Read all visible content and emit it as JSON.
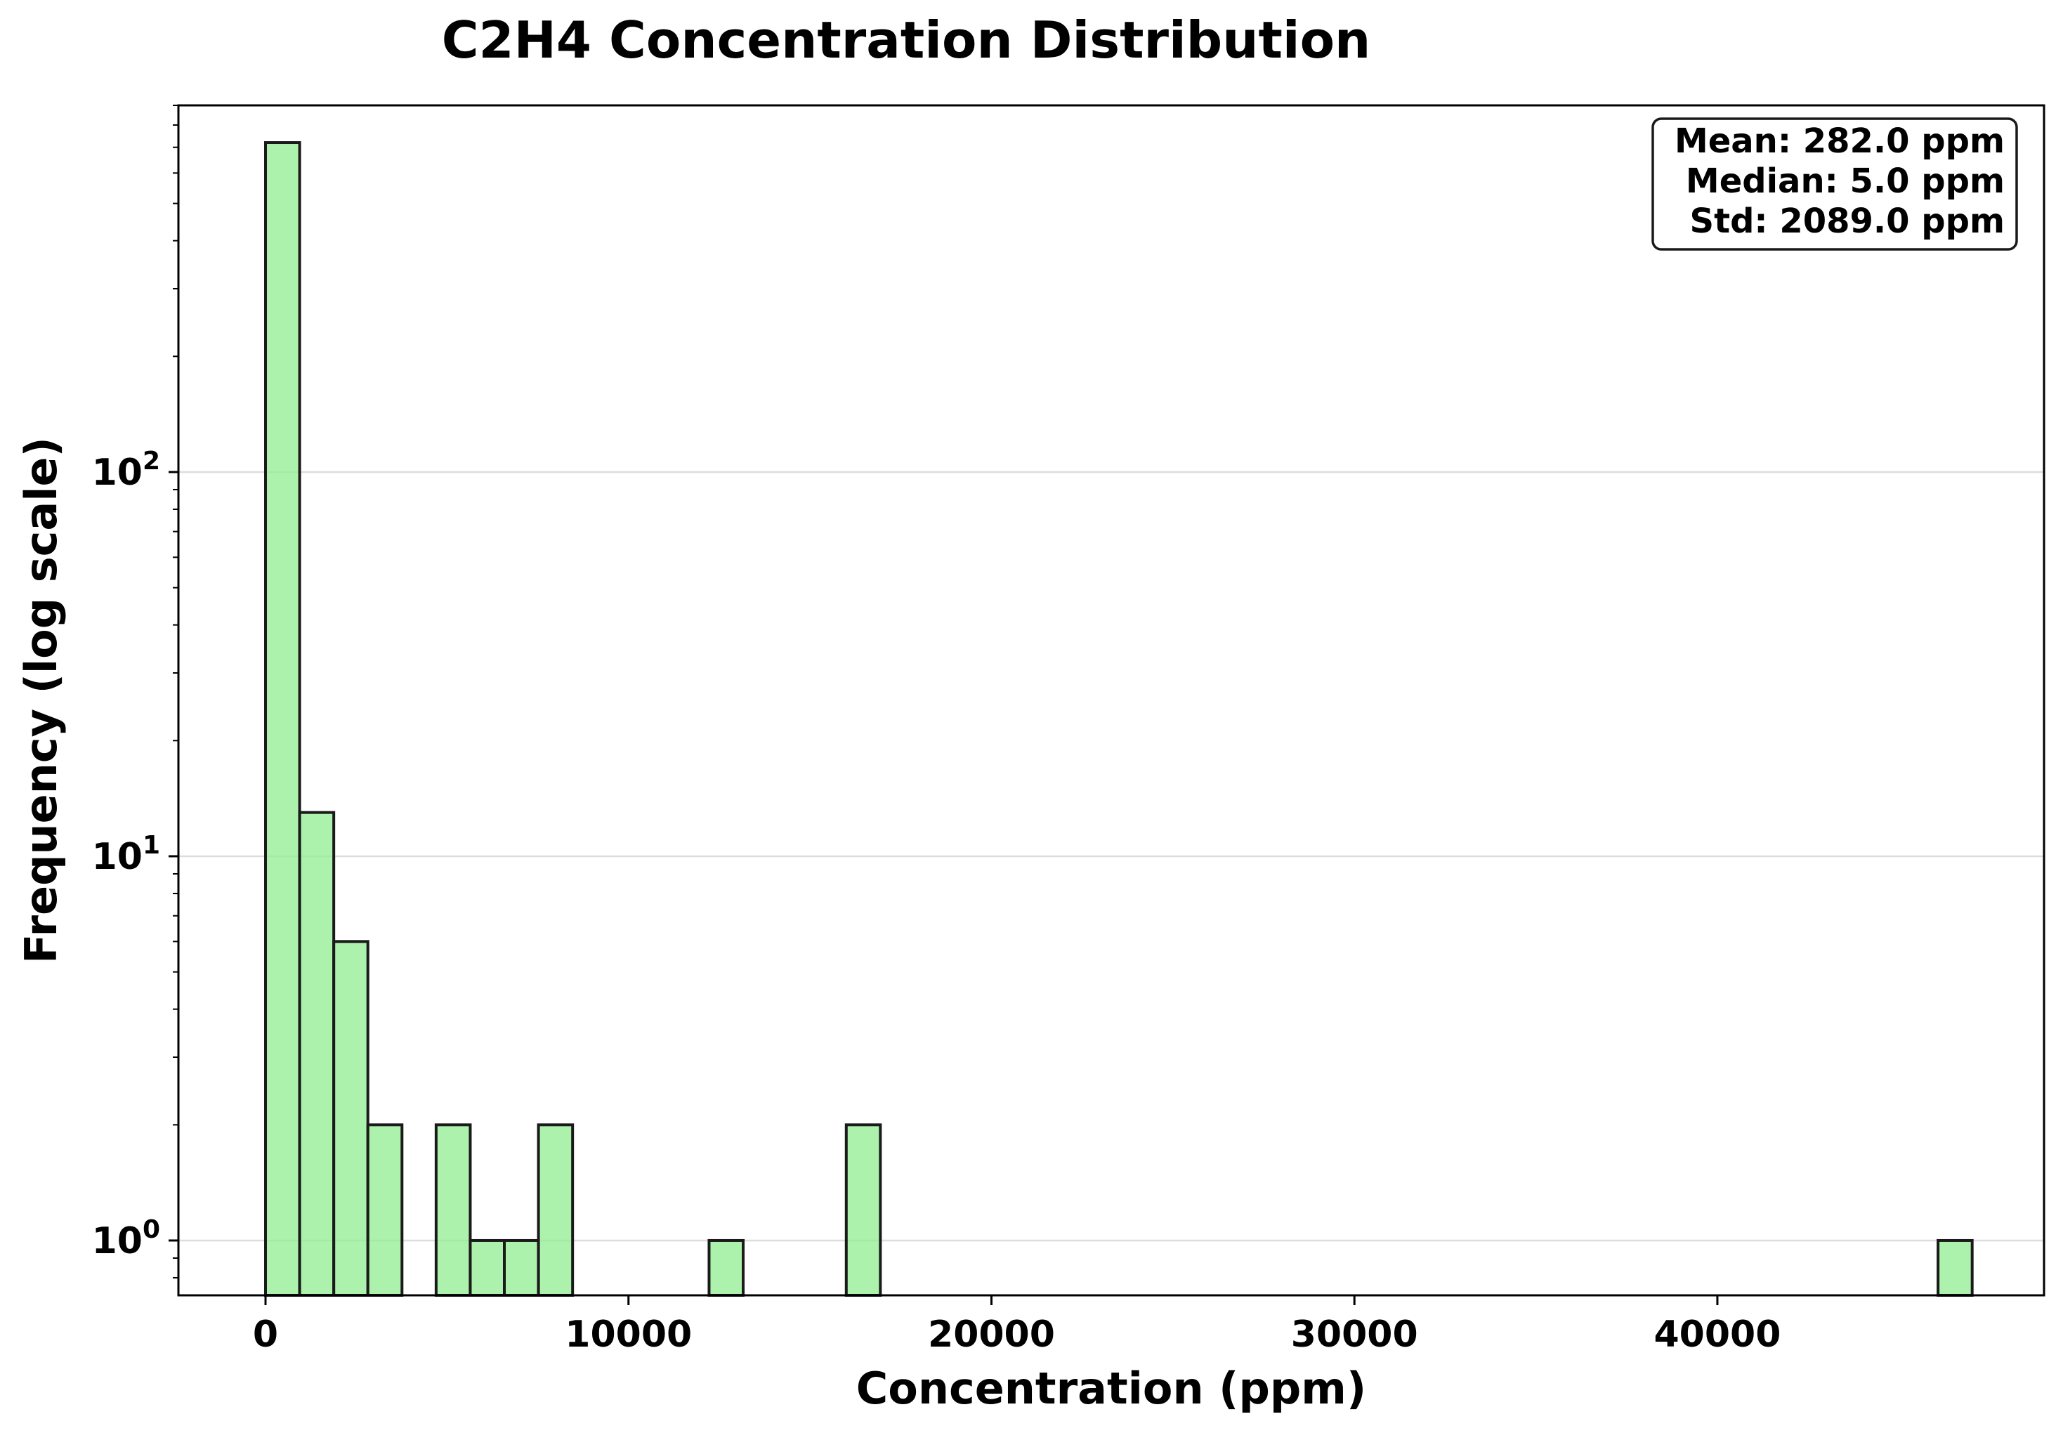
{
  "chart_data": {
    "type": "bar",
    "title": "C2H4 Concentration Distribution",
    "xlabel": "Concentration (ppm)",
    "ylabel": "Frequency (log scale)",
    "y_scale": "log",
    "xlim": [
      -2400,
      49000
    ],
    "ylim": [
      0.72,
      900
    ],
    "x_ticks": [
      0,
      10000,
      20000,
      30000,
      40000
    ],
    "x_tick_labels": [
      "0",
      "10000",
      "20000",
      "30000",
      "40000"
    ],
    "y_ticks": [
      1,
      10,
      100
    ],
    "y_tick_labels": [
      {
        "base": "10",
        "exp": "0"
      },
      {
        "base": "10",
        "exp": "1"
      },
      {
        "base": "10",
        "exp": "2"
      }
    ],
    "grid": "y-major",
    "bin_width": 940,
    "bins": [
      {
        "start": 0,
        "end": 940,
        "count": 720
      },
      {
        "start": 940,
        "end": 1880,
        "count": 13
      },
      {
        "start": 1880,
        "end": 2820,
        "count": 6
      },
      {
        "start": 2820,
        "end": 3760,
        "count": 2
      },
      {
        "start": 4700,
        "end": 5640,
        "count": 2
      },
      {
        "start": 5640,
        "end": 6580,
        "count": 1
      },
      {
        "start": 6580,
        "end": 7520,
        "count": 1
      },
      {
        "start": 7520,
        "end": 8460,
        "count": 2
      },
      {
        "start": 12220,
        "end": 13160,
        "count": 1
      },
      {
        "start": 16000,
        "end": 16940,
        "count": 2
      },
      {
        "start": 46080,
        "end": 47020,
        "count": 1
      }
    ],
    "stats_box": {
      "placement": "top-right",
      "lines": [
        "Mean: 282.0 ppm",
        "Median: 5.0 ppm",
        "Std: 2089.0 ppm"
      ]
    },
    "colors": {
      "bar_fill": "#90ee90",
      "bar_edge": "#1a1a1a",
      "grid": "#dddddd",
      "axis": "#000000"
    }
  }
}
